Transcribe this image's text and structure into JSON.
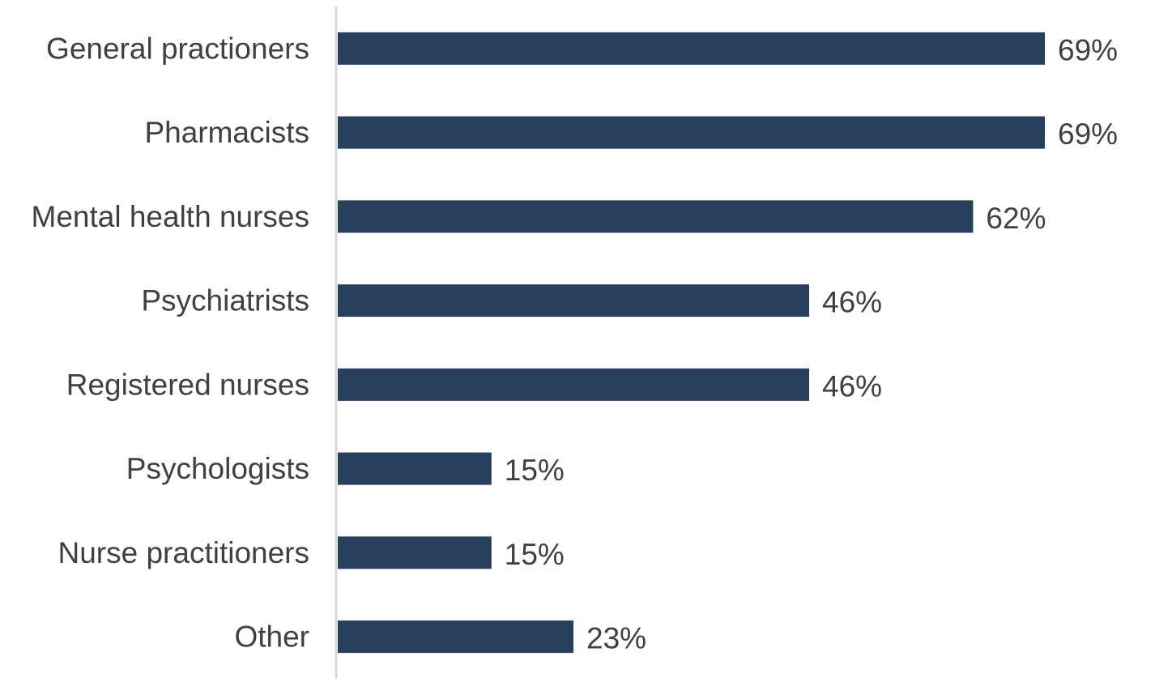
{
  "chart_data": {
    "type": "bar",
    "orientation": "horizontal",
    "categories": [
      "General practioners",
      "Pharmacists",
      "Mental health nurses",
      "Psychiatrists",
      "Registered nurses",
      "Psychologists",
      "Nurse practitioners",
      "Other"
    ],
    "values": [
      69,
      69,
      62,
      46,
      46,
      15,
      15,
      23
    ],
    "value_labels": [
      "69%",
      "69%",
      "62%",
      "46%",
      "46%",
      "15%",
      "15%",
      "23%"
    ],
    "unit": "%",
    "title": "",
    "xlabel": "",
    "ylabel": "",
    "xlim": [
      0,
      69
    ],
    "grid": false,
    "legend": "none",
    "bar_color": "#283f5e",
    "axis_color": "#d9d9d9",
    "text_color": "#404040"
  }
}
